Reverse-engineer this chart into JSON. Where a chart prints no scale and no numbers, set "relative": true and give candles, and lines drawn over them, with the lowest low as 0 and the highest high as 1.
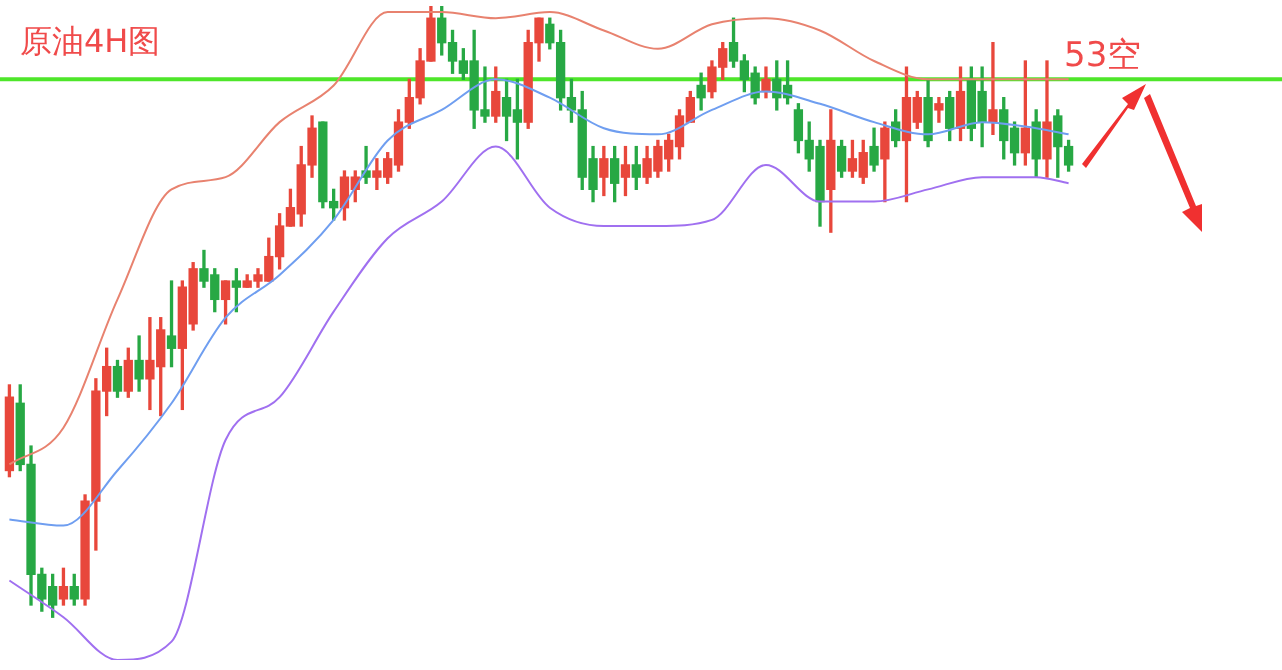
{
  "chart_data": {
    "type": "candlestick",
    "title": "原油4H图",
    "annotations": [
      "53空"
    ],
    "relative": true,
    "legend": false,
    "categories": [
      null,
      null,
      null,
      null,
      null,
      null,
      null,
      null,
      null,
      null,
      null,
      null,
      null,
      null,
      null,
      null,
      null,
      null,
      null,
      null,
      null,
      null,
      null,
      null,
      null,
      null,
      null,
      null,
      null,
      null,
      null,
      null,
      null,
      null,
      null,
      null,
      null,
      null,
      null,
      null,
      null,
      null,
      null,
      null,
      null,
      null,
      null,
      null,
      null,
      null,
      null,
      null,
      null,
      null,
      null,
      null,
      null,
      null,
      null,
      null,
      null,
      null,
      null,
      null,
      null,
      null,
      null,
      null,
      null,
      null,
      null,
      null,
      null,
      null,
      null,
      null,
      null,
      null,
      null,
      null,
      null,
      null,
      null,
      null,
      null,
      null,
      null,
      null,
      null,
      null,
      null,
      null,
      null,
      null,
      null,
      null,
      null,
      null,
      null
    ],
    "ohlc": [
      [
        0.24,
        0.38,
        0.23,
        0.36
      ],
      [
        0.35,
        0.38,
        0.24,
        0.25
      ],
      [
        0.25,
        0.28,
        0.02,
        0.07
      ],
      [
        0.07,
        0.08,
        0.01,
        0.03
      ],
      [
        0.05,
        0.07,
        0.0,
        0.02
      ],
      [
        0.03,
        0.08,
        0.02,
        0.05
      ],
      [
        0.05,
        0.07,
        0.02,
        0.03
      ],
      [
        0.03,
        0.2,
        0.02,
        0.19
      ],
      [
        0.19,
        0.39,
        0.11,
        0.37
      ],
      [
        0.37,
        0.44,
        0.33,
        0.41
      ],
      [
        0.41,
        0.42,
        0.36,
        0.37
      ],
      [
        0.37,
        0.44,
        0.36,
        0.42
      ],
      [
        0.42,
        0.46,
        0.37,
        0.39
      ],
      [
        0.39,
        0.49,
        0.34,
        0.42
      ],
      [
        0.41,
        0.49,
        0.33,
        0.47
      ],
      [
        0.46,
        0.55,
        0.41,
        0.44
      ],
      [
        0.44,
        0.55,
        0.34,
        0.54
      ],
      [
        0.48,
        0.58,
        0.47,
        0.57
      ],
      [
        0.57,
        0.6,
        0.54,
        0.55
      ],
      [
        0.56,
        0.57,
        0.5,
        0.52
      ],
      [
        0.52,
        0.55,
        0.48,
        0.55
      ],
      [
        0.55,
        0.57,
        0.5,
        0.54
      ],
      [
        0.54,
        0.56,
        0.54,
        0.55
      ],
      [
        0.55,
        0.57,
        0.54,
        0.56
      ],
      [
        0.55,
        0.62,
        0.55,
        0.59
      ],
      [
        0.59,
        0.66,
        0.57,
        0.64
      ],
      [
        0.64,
        0.7,
        0.64,
        0.67
      ],
      [
        0.66,
        0.77,
        0.64,
        0.74
      ],
      [
        0.74,
        0.82,
        0.72,
        0.8
      ],
      [
        0.81,
        0.81,
        0.67,
        0.68
      ],
      [
        0.68,
        0.7,
        0.65,
        0.67
      ],
      [
        0.67,
        0.73,
        0.65,
        0.72
      ],
      [
        0.7,
        0.73,
        0.68,
        0.72
      ],
      [
        0.73,
        0.77,
        0.71,
        0.72
      ],
      [
        0.72,
        0.75,
        0.7,
        0.73
      ],
      [
        0.72,
        0.76,
        0.71,
        0.75
      ],
      [
        0.74,
        0.83,
        0.73,
        0.81
      ],
      [
        0.81,
        0.88,
        0.8,
        0.85
      ],
      [
        0.85,
        0.93,
        0.84,
        0.91
      ],
      [
        0.91,
        1.0,
        0.91,
        0.98
      ],
      [
        0.98,
        1.0,
        0.92,
        0.94
      ],
      [
        0.94,
        0.96,
        0.89,
        0.91
      ],
      [
        0.91,
        0.93,
        0.88,
        0.89
      ],
      [
        0.91,
        0.96,
        0.8,
        0.83
      ],
      [
        0.83,
        0.9,
        0.81,
        0.82
      ],
      [
        0.82,
        0.9,
        0.81,
        0.86
      ],
      [
        0.85,
        0.88,
        0.78,
        0.82
      ],
      [
        0.83,
        0.88,
        0.75,
        0.81
      ],
      [
        0.81,
        0.96,
        0.8,
        0.94
      ],
      [
        0.94,
        0.98,
        0.91,
        0.98
      ],
      [
        0.97,
        0.98,
        0.93,
        0.94
      ],
      [
        0.94,
        0.96,
        0.83,
        0.85
      ],
      [
        0.85,
        0.88,
        0.81,
        0.83
      ],
      [
        0.83,
        0.86,
        0.7,
        0.72
      ],
      [
        0.75,
        0.77,
        0.68,
        0.7
      ],
      [
        0.72,
        0.77,
        0.69,
        0.75
      ],
      [
        0.75,
        0.77,
        0.68,
        0.71
      ],
      [
        0.72,
        0.77,
        0.69,
        0.74
      ],
      [
        0.74,
        0.77,
        0.7,
        0.72
      ],
      [
        0.72,
        0.77,
        0.71,
        0.75
      ],
      [
        0.73,
        0.78,
        0.72,
        0.77
      ],
      [
        0.75,
        0.79,
        0.73,
        0.78
      ],
      [
        0.77,
        0.83,
        0.75,
        0.82
      ],
      [
        0.81,
        0.86,
        0.81,
        0.85
      ],
      [
        0.87,
        0.89,
        0.83,
        0.85
      ],
      [
        0.86,
        0.91,
        0.85,
        0.9
      ],
      [
        0.9,
        0.94,
        0.88,
        0.93
      ],
      [
        0.94,
        0.98,
        0.9,
        0.91
      ],
      [
        0.91,
        0.92,
        0.86,
        0.88
      ],
      [
        0.89,
        0.9,
        0.84,
        0.85
      ],
      [
        0.86,
        0.9,
        0.85,
        0.88
      ],
      [
        0.88,
        0.91,
        0.83,
        0.85
      ],
      [
        0.87,
        0.91,
        0.84,
        0.85
      ],
      [
        0.83,
        0.84,
        0.76,
        0.78
      ],
      [
        0.78,
        0.81,
        0.73,
        0.75
      ],
      [
        0.77,
        0.78,
        0.64,
        0.68
      ],
      [
        0.7,
        0.83,
        0.63,
        0.78
      ],
      [
        0.77,
        0.78,
        0.72,
        0.73
      ],
      [
        0.73,
        0.78,
        0.72,
        0.75
      ],
      [
        0.72,
        0.78,
        0.71,
        0.76
      ],
      [
        0.77,
        0.8,
        0.73,
        0.74
      ],
      [
        0.75,
        0.81,
        0.68,
        0.8
      ],
      [
        0.81,
        0.83,
        0.77,
        0.78
      ],
      [
        0.78,
        0.9,
        0.68,
        0.85
      ],
      [
        0.81,
        0.86,
        0.8,
        0.85
      ],
      [
        0.85,
        0.88,
        0.77,
        0.78
      ],
      [
        0.83,
        0.85,
        0.81,
        0.84
      ],
      [
        0.85,
        0.86,
        0.78,
        0.8
      ],
      [
        0.8,
        0.9,
        0.78,
        0.86
      ],
      [
        0.88,
        0.9,
        0.78,
        0.8
      ],
      [
        0.86,
        0.9,
        0.77,
        0.81
      ],
      [
        0.81,
        0.94,
        0.79,
        0.83
      ],
      [
        0.83,
        0.85,
        0.75,
        0.78
      ],
      [
        0.8,
        0.81,
        0.74,
        0.76
      ],
      [
        0.76,
        0.91,
        0.74,
        0.8
      ],
      [
        0.81,
        0.83,
        0.72,
        0.75
      ],
      [
        0.75,
        0.91,
        0.72,
        0.81
      ],
      [
        0.82,
        0.83,
        0.72,
        0.77
      ],
      [
        0.77,
        0.78,
        0.73,
        0.74
      ]
    ],
    "series": [
      {
        "type": "line",
        "color": "#e8826f",
        "values": [
          0.25,
          null,
          null,
          null,
          null,
          0.31,
          null,
          null,
          null,
          null,
          0.52,
          null,
          null,
          null,
          null,
          0.7,
          null,
          null,
          null,
          null,
          0.72,
          null,
          null,
          null,
          null,
          0.81,
          null,
          null,
          null,
          null,
          0.87,
          null,
          null,
          null,
          null,
          0.99,
          null,
          null,
          null,
          null,
          0.99,
          null,
          null,
          null,
          null,
          0.98,
          null,
          null,
          null,
          null,
          0.99,
          null,
          null,
          null,
          null,
          0.96,
          null,
          null,
          null,
          null,
          0.93,
          null,
          null,
          null,
          null,
          0.97,
          null,
          null,
          null,
          null,
          0.98,
          null,
          null,
          null,
          null,
          0.96,
          null,
          null,
          null,
          null,
          0.91,
          null,
          null,
          null,
          null,
          0.88,
          null,
          null,
          null,
          null,
          0.88,
          null,
          null,
          null,
          null,
          0.88,
          null,
          null,
          0.88
        ]
      },
      {
        "type": "line",
        "color": "#6f9ef0",
        "values": [
          0.16,
          null,
          null,
          null,
          null,
          0.15,
          null,
          null,
          null,
          null,
          0.24,
          null,
          null,
          null,
          null,
          0.35,
          null,
          null,
          null,
          null,
          0.49,
          null,
          null,
          null,
          null,
          0.56,
          null,
          null,
          null,
          null,
          0.65,
          null,
          null,
          null,
          null,
          0.78,
          null,
          null,
          null,
          null,
          0.83,
          null,
          null,
          null,
          null,
          0.88,
          null,
          null,
          null,
          null,
          0.85,
          null,
          null,
          null,
          null,
          0.8,
          null,
          null,
          null,
          null,
          0.79,
          null,
          null,
          null,
          null,
          0.83,
          null,
          null,
          null,
          null,
          0.86,
          null,
          null,
          null,
          null,
          0.84,
          null,
          null,
          null,
          null,
          0.81,
          null,
          null,
          null,
          null,
          0.79,
          null,
          null,
          null,
          null,
          0.81,
          null,
          null,
          null,
          null,
          0.8,
          null,
          null,
          0.79
        ]
      },
      {
        "type": "line",
        "color": "#a070f0",
        "values": [
          0.06,
          null,
          null,
          null,
          null,
          0.0,
          null,
          null,
          null,
          null,
          -0.07,
          null,
          null,
          null,
          null,
          -0.04,
          null,
          null,
          null,
          null,
          0.29,
          null,
          null,
          null,
          null,
          0.36,
          null,
          null,
          null,
          null,
          0.5,
          null,
          null,
          null,
          null,
          0.62,
          null,
          null,
          null,
          null,
          0.68,
          null,
          null,
          null,
          null,
          0.77,
          null,
          null,
          null,
          null,
          0.67,
          null,
          null,
          null,
          null,
          0.64,
          null,
          null,
          null,
          null,
          0.64,
          null,
          null,
          null,
          null,
          0.65,
          null,
          null,
          null,
          null,
          0.74,
          null,
          null,
          null,
          null,
          0.68,
          null,
          null,
          null,
          null,
          0.68,
          null,
          null,
          null,
          null,
          0.7,
          null,
          null,
          null,
          null,
          0.72,
          null,
          null,
          null,
          null,
          0.72,
          null,
          null,
          0.71
        ]
      }
    ],
    "ref_lines": [
      {
        "axis": "y",
        "value": 0.88,
        "color": "#4ee62a"
      }
    ]
  }
}
